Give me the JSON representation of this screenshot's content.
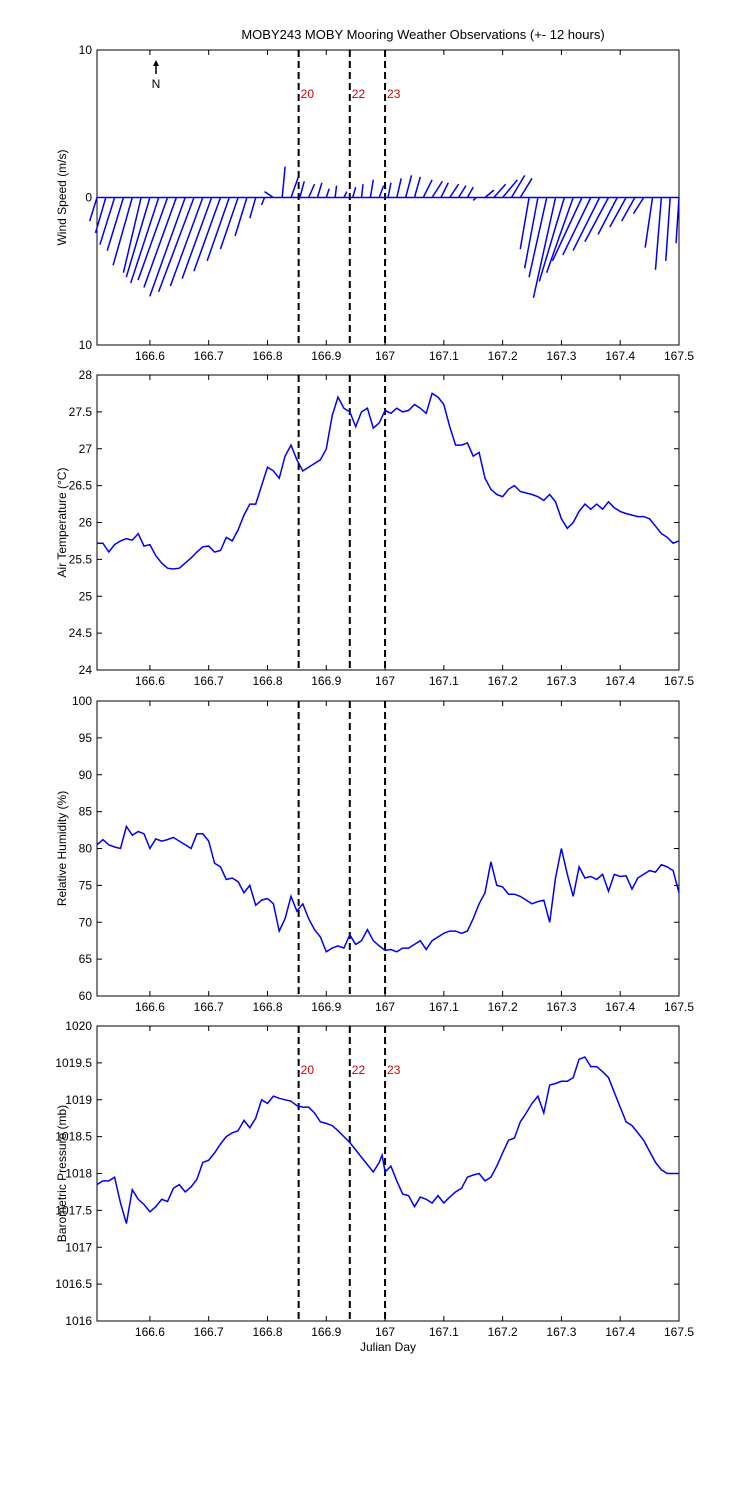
{
  "title": "MOBY243 MOBY Mooring Weather Observations (+- 12 hours)",
  "line_color": "#0000ee",
  "marker_color": "#cc0000",
  "chart_data": [
    {
      "type": "line",
      "subtype": "wind-vectors",
      "title": "MOBY243 MOBY Mooring Weather Observations (+- 12 hours)",
      "xlabel": "",
      "ylabel": "Wind Speed (m/s)",
      "xlim": [
        166.51,
        167.5
      ],
      "ylim": [
        -10,
        10
      ],
      "yticks": [
        10,
        0,
        10
      ],
      "xticks": [
        "166.6",
        "166.7",
        "166.8",
        "166.9",
        "167",
        "167.1",
        "167.2",
        "167.3",
        "167.4",
        "167.5"
      ],
      "north_label": "N",
      "markers": [
        {
          "x": 166.853,
          "label": "20"
        },
        {
          "x": 166.94,
          "label": "22"
        },
        {
          "x": 167.0,
          "label": "23"
        }
      ],
      "series": [
        {
          "x": [
            166.51,
            166.525,
            166.54,
            166.555,
            166.57,
            166.585,
            166.6,
            166.615,
            166.63,
            166.645,
            166.66,
            166.675,
            166.69,
            166.705,
            166.72,
            166.735,
            166.75,
            166.765,
            166.78,
            166.795,
            166.81,
            166.825,
            166.84,
            166.855,
            166.87,
            166.885,
            166.9,
            166.915,
            166.93,
            166.945,
            166.96,
            166.975,
            166.99,
            167.005,
            167.02,
            167.035,
            167.05,
            167.065,
            167.08,
            167.095,
            167.11,
            167.125,
            167.14,
            167.155,
            167.17,
            167.185,
            167.2,
            167.215,
            167.23,
            167.245,
            167.26,
            167.275,
            167.29,
            167.305,
            167.32,
            167.335,
            167.35,
            167.365,
            167.38,
            167.395,
            167.41,
            167.425,
            167.44,
            167.455,
            167.47,
            167.485,
            167.5
          ],
          "u": [
            -0.5,
            -0.7,
            -1.0,
            -1.1,
            -1.3,
            -1.2,
            -1.6,
            -1.9,
            -2.0,
            -2.2,
            -2.4,
            -2.4,
            -2.2,
            -2.0,
            -1.8,
            -1.5,
            -1.2,
            -0.8,
            -0.4,
            -0.2,
            -0.6,
            0.2,
            0.5,
            0.3,
            0.4,
            0.3,
            0.2,
            0.1,
            0.2,
            0.2,
            0.1,
            0.2,
            0.3,
            0.2,
            0.3,
            0.4,
            0.4,
            0.6,
            0.7,
            0.5,
            0.6,
            0.5,
            0.4,
            -0.2,
            0.6,
            0.8,
            1.0,
            0.9,
            0.8,
            -0.6,
            -0.9,
            -1.2,
            -1.5,
            -1.7,
            -1.8,
            -2.0,
            -1.9,
            -1.8,
            -1.6,
            -1.3,
            -1.1,
            -0.9,
            -0.7,
            -0.5,
            -0.4,
            -0.3,
            -0.2
          ],
          "v": [
            -1.6,
            -2.4,
            -3.2,
            -3.6,
            -4.6,
            -5.1,
            -5.4,
            -5.8,
            -5.6,
            -6.1,
            -6.7,
            -6.4,
            -6.0,
            -5.5,
            -5.0,
            -4.3,
            -3.5,
            -2.6,
            -1.4,
            -0.5,
            0.4,
            2.1,
            1.4,
            1.1,
            0.9,
            1.0,
            0.6,
            0.8,
            0.4,
            0.7,
            0.9,
            1.2,
            0.8,
            1.0,
            1.3,
            1.5,
            1.4,
            1.2,
            1.1,
            1.0,
            0.9,
            0.8,
            0.7,
            -0.2,
            0.5,
            0.9,
            1.2,
            1.5,
            1.3,
            -3.5,
            -4.8,
            -5.4,
            -6.8,
            -5.7,
            -5.1,
            -4.3,
            -3.9,
            -3.6,
            -3.0,
            -2.5,
            -2.0,
            -1.6,
            -1.1,
            -3.4,
            -4.9,
            -4.3,
            -3.1
          ]
        }
      ]
    },
    {
      "type": "line",
      "xlabel": "",
      "ylabel": "Air Temperature (°C)",
      "xlim": [
        166.51,
        167.5
      ],
      "ylim": [
        24,
        28
      ],
      "yticks": [
        "24",
        "24.5",
        "25",
        "25.5",
        "26",
        "26.5",
        "27",
        "27.5",
        "28"
      ],
      "xticks": [
        "166.6",
        "166.7",
        "166.8",
        "166.9",
        "167",
        "167.1",
        "167.2",
        "167.3",
        "167.4",
        "167.5"
      ],
      "markers": [
        {
          "x": 166.853,
          "label": ""
        },
        {
          "x": 166.94,
          "label": ""
        },
        {
          "x": 167.0,
          "label": ""
        }
      ],
      "series": [
        {
          "x": [
            166.51,
            166.52,
            166.53,
            166.54,
            166.55,
            166.56,
            166.57,
            166.58,
            166.59,
            166.6,
            166.61,
            166.62,
            166.63,
            166.64,
            166.65,
            166.66,
            166.67,
            166.68,
            166.69,
            166.7,
            166.71,
            166.72,
            166.73,
            166.74,
            166.75,
            166.76,
            166.77,
            166.78,
            166.79,
            166.8,
            166.81,
            166.82,
            166.83,
            166.84,
            166.85,
            166.86,
            166.87,
            166.88,
            166.89,
            166.9,
            166.91,
            166.92,
            166.93,
            166.94,
            166.95,
            166.96,
            166.97,
            166.98,
            166.99,
            167.0,
            167.01,
            167.02,
            167.03,
            167.04,
            167.05,
            167.06,
            167.07,
            167.08,
            167.09,
            167.1,
            167.11,
            167.12,
            167.13,
            167.14,
            167.15,
            167.16,
            167.17,
            167.18,
            167.19,
            167.2,
            167.21,
            167.22,
            167.23,
            167.24,
            167.25,
            167.26,
            167.27,
            167.28,
            167.29,
            167.3,
            167.31,
            167.32,
            167.33,
            167.34,
            167.35,
            167.36,
            167.37,
            167.38,
            167.39,
            167.4,
            167.41,
            167.42,
            167.43,
            167.44,
            167.45,
            167.46,
            167.47,
            167.48,
            167.49,
            167.5
          ],
          "y": [
            25.72,
            25.72,
            25.6,
            25.7,
            25.75,
            25.78,
            25.76,
            25.85,
            25.68,
            25.7,
            25.55,
            25.45,
            25.38,
            25.37,
            25.38,
            25.45,
            25.52,
            25.6,
            25.67,
            25.68,
            25.6,
            25.62,
            25.8,
            25.75,
            25.9,
            26.1,
            26.25,
            26.25,
            26.5,
            26.75,
            26.7,
            26.6,
            26.9,
            27.05,
            26.85,
            26.7,
            26.75,
            26.8,
            26.85,
            27.0,
            27.45,
            27.7,
            27.55,
            27.5,
            27.3,
            27.5,
            27.55,
            27.28,
            27.35,
            27.52,
            27.48,
            27.55,
            27.5,
            27.52,
            27.6,
            27.55,
            27.48,
            27.75,
            27.7,
            27.6,
            27.3,
            27.05,
            27.05,
            27.08,
            26.9,
            26.95,
            26.6,
            26.45,
            26.38,
            26.35,
            26.45,
            26.5,
            26.42,
            26.4,
            26.38,
            26.35,
            26.3,
            26.38,
            26.28,
            26.05,
            25.92,
            26.0,
            26.15,
            26.25,
            26.18,
            26.25,
            26.18,
            26.28,
            26.2,
            26.15,
            26.12,
            26.1,
            26.08,
            26.08,
            26.05,
            25.95,
            25.85,
            25.8,
            25.72,
            25.75
          ]
        }
      ]
    },
    {
      "type": "line",
      "xlabel": "",
      "ylabel": "Relative Humidity (%)",
      "xlim": [
        166.51,
        167.5
      ],
      "ylim": [
        60,
        100
      ],
      "yticks": [
        "60",
        "65",
        "70",
        "75",
        "80",
        "85",
        "90",
        "95",
        "100"
      ],
      "xticks": [
        "166.6",
        "166.7",
        "166.8",
        "166.9",
        "167",
        "167.1",
        "167.2",
        "167.3",
        "167.4",
        "167.5"
      ],
      "markers": [
        {
          "x": 166.853,
          "label": ""
        },
        {
          "x": 166.94,
          "label": ""
        },
        {
          "x": 167.0,
          "label": ""
        }
      ],
      "series": [
        {
          "x": [
            166.51,
            166.52,
            166.53,
            166.54,
            166.55,
            166.56,
            166.57,
            166.58,
            166.59,
            166.6,
            166.61,
            166.62,
            166.63,
            166.64,
            166.65,
            166.66,
            166.67,
            166.68,
            166.69,
            166.7,
            166.71,
            166.72,
            166.73,
            166.74,
            166.75,
            166.76,
            166.77,
            166.78,
            166.79,
            166.8,
            166.81,
            166.82,
            166.83,
            166.84,
            166.85,
            166.86,
            166.87,
            166.88,
            166.89,
            166.9,
            166.91,
            166.92,
            166.93,
            166.94,
            166.95,
            166.96,
            166.97,
            166.98,
            166.99,
            167.0,
            167.01,
            167.02,
            167.03,
            167.04,
            167.05,
            167.06,
            167.07,
            167.08,
            167.09,
            167.1,
            167.11,
            167.12,
            167.13,
            167.14,
            167.15,
            167.16,
            167.17,
            167.18,
            167.19,
            167.2,
            167.21,
            167.22,
            167.23,
            167.24,
            167.25,
            167.26,
            167.27,
            167.28,
            167.29,
            167.3,
            167.31,
            167.32,
            167.33,
            167.34,
            167.35,
            167.36,
            167.37,
            167.38,
            167.39,
            167.4,
            167.41,
            167.42,
            167.43,
            167.44,
            167.45,
            167.46,
            167.47,
            167.48,
            167.49,
            167.5
          ],
          "y": [
            80.5,
            81.2,
            80.5,
            80.2,
            80.0,
            83.0,
            81.8,
            82.3,
            82.0,
            80.0,
            81.3,
            81.0,
            81.2,
            81.5,
            81.0,
            80.5,
            80.0,
            82.0,
            82.0,
            81.0,
            78.0,
            77.5,
            75.8,
            76.0,
            75.5,
            74.0,
            75.0,
            72.3,
            73.0,
            73.2,
            72.5,
            68.8,
            70.5,
            73.5,
            71.5,
            72.5,
            70.5,
            69.0,
            68.0,
            66.0,
            66.5,
            66.8,
            66.5,
            68.3,
            67.0,
            67.5,
            69.0,
            67.5,
            66.8,
            66.2,
            66.3,
            66.0,
            66.5,
            66.5,
            67.0,
            67.5,
            66.3,
            67.5,
            68.0,
            68.5,
            68.8,
            68.8,
            68.5,
            68.8,
            70.5,
            72.5,
            74.0,
            78.2,
            75.0,
            74.8,
            73.8,
            73.8,
            73.5,
            73.0,
            72.5,
            72.8,
            73.0,
            70.0,
            76.0,
            80.0,
            76.5,
            73.5,
            77.5,
            76.0,
            76.2,
            75.8,
            76.5,
            74.2,
            76.5,
            76.2,
            76.3,
            74.5,
            76.0,
            76.5,
            77.0,
            76.8,
            77.8,
            77.5,
            77.0,
            74.0
          ]
        }
      ]
    },
    {
      "type": "line",
      "xlabel": "Julian Day",
      "ylabel": "Barometric Pressure (mb)",
      "xlim": [
        166.51,
        167.5
      ],
      "ylim": [
        1016,
        1020
      ],
      "yticks": [
        "1016",
        "1016.5",
        "1017",
        "1017.5",
        "1018",
        "1018.5",
        "1019",
        "1019.5",
        "1020"
      ],
      "xticks": [
        "166.6",
        "166.7",
        "166.8",
        "166.9",
        "167",
        "167.1",
        "167.2",
        "167.3",
        "167.4",
        "167.5"
      ],
      "markers": [
        {
          "x": 166.853,
          "label": "20"
        },
        {
          "x": 166.94,
          "label": "22"
        },
        {
          "x": 167.0,
          "label": "23"
        }
      ],
      "series": [
        {
          "x": [
            166.51,
            166.52,
            166.53,
            166.54,
            166.55,
            166.56,
            166.565,
            166.57,
            166.58,
            166.59,
            166.6,
            166.61,
            166.62,
            166.63,
            166.64,
            166.65,
            166.66,
            166.67,
            166.68,
            166.69,
            166.7,
            166.71,
            166.72,
            166.73,
            166.74,
            166.75,
            166.76,
            166.77,
            166.78,
            166.79,
            166.8,
            166.81,
            166.82,
            166.83,
            166.84,
            166.85,
            166.86,
            166.87,
            166.88,
            166.89,
            166.9,
            166.91,
            166.92,
            166.93,
            166.94,
            166.95,
            166.96,
            166.97,
            166.98,
            166.99,
            166.995,
            167.0,
            167.01,
            167.02,
            167.03,
            167.04,
            167.05,
            167.06,
            167.07,
            167.08,
            167.09,
            167.1,
            167.11,
            167.12,
            167.13,
            167.14,
            167.15,
            167.16,
            167.17,
            167.18,
            167.19,
            167.2,
            167.21,
            167.22,
            167.23,
            167.24,
            167.25,
            167.26,
            167.27,
            167.28,
            167.29,
            167.3,
            167.31,
            167.32,
            167.33,
            167.34,
            167.35,
            167.36,
            167.37,
            167.38,
            167.39,
            167.4,
            167.41,
            167.42,
            167.43,
            167.44,
            167.45,
            167.46,
            167.47,
            167.48,
            167.49,
            167.5
          ],
          "y": [
            1017.85,
            1017.9,
            1017.9,
            1017.95,
            1017.6,
            1017.32,
            1017.55,
            1017.78,
            1017.65,
            1017.58,
            1017.48,
            1017.55,
            1017.65,
            1017.62,
            1017.8,
            1017.85,
            1017.75,
            1017.82,
            1017.92,
            1018.15,
            1018.18,
            1018.28,
            1018.4,
            1018.5,
            1018.55,
            1018.58,
            1018.72,
            1018.62,
            1018.75,
            1019.0,
            1018.95,
            1019.05,
            1019.02,
            1019.0,
            1018.98,
            1018.92,
            1018.9,
            1018.9,
            1018.82,
            1018.7,
            1018.68,
            1018.65,
            1018.58,
            1018.5,
            1018.42,
            1018.32,
            1018.22,
            1018.12,
            1018.02,
            1018.15,
            1018.25,
            1018.02,
            1018.1,
            1017.9,
            1017.72,
            1017.7,
            1017.55,
            1017.68,
            1017.65,
            1017.6,
            1017.7,
            1017.6,
            1017.68,
            1017.75,
            1017.8,
            1017.95,
            1017.98,
            1018.0,
            1017.9,
            1017.95,
            1018.1,
            1018.28,
            1018.45,
            1018.48,
            1018.7,
            1018.82,
            1018.95,
            1019.05,
            1018.82,
            1019.2,
            1019.22,
            1019.25,
            1019.25,
            1019.3,
            1019.55,
            1019.58,
            1019.45,
            1019.45,
            1019.38,
            1019.3,
            1019.1,
            1018.9,
            1018.7,
            1018.65,
            1018.55,
            1018.45,
            1018.3,
            1018.15,
            1018.05,
            1018.0,
            1018.0,
            1018.0
          ]
        }
      ]
    }
  ]
}
